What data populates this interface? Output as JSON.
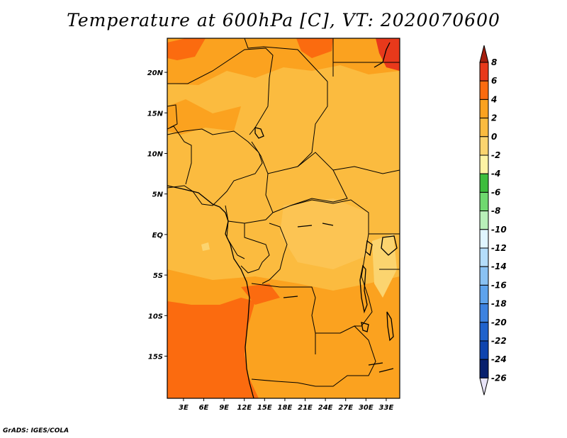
{
  "title": "Temperature at 600hPa [C], VT: 2020070600",
  "credit": "GrADS: IGES/COLA",
  "map": {
    "lat_ticks": [
      {
        "lat": 20,
        "label": "20N"
      },
      {
        "lat": 15,
        "label": "15N"
      },
      {
        "lat": 10,
        "label": "10N"
      },
      {
        "lat": 5,
        "label": "5N"
      },
      {
        "lat": 0,
        "label": "EQ"
      },
      {
        "lat": -5,
        "label": "5S"
      },
      {
        "lat": -10,
        "label": "10S"
      },
      {
        "lat": -15,
        "label": "15S"
      }
    ],
    "lon_ticks": [
      {
        "lon": 3,
        "label": "3E"
      },
      {
        "lon": 6,
        "label": "6E"
      },
      {
        "lon": 9,
        "label": "9E"
      },
      {
        "lon": 12,
        "label": "12E"
      },
      {
        "lon": 15,
        "label": "15E"
      },
      {
        "lon": 18,
        "label": "18E"
      },
      {
        "lon": 21,
        "label": "21E"
      },
      {
        "lon": 24,
        "label": "24E"
      },
      {
        "lon": 27,
        "label": "27E"
      },
      {
        "lon": 30,
        "label": "30E"
      },
      {
        "lon": 33,
        "label": "33E"
      }
    ],
    "dominant_field": "temperature 0 to 4 C over most of the domain, 4 to 6 C in the south-west and along the Angola coast, 6 to 8 C at the north-east corner"
  },
  "colorbar": {
    "levels": [
      {
        "value": "8",
        "color": "#a51e0e"
      },
      {
        "value": "6",
        "color": "#e8391b"
      },
      {
        "value": "4",
        "color": "#fb6b0f"
      },
      {
        "value": "2",
        "color": "#fba21f"
      },
      {
        "value": "0",
        "color": "#fbbb3f"
      },
      {
        "value": "-2",
        "color": "#fbd46f"
      },
      {
        "value": "-4",
        "color": "#fdf3a4"
      },
      {
        "value": "-6",
        "color": "#3dbd3d"
      },
      {
        "value": "-8",
        "color": "#6fd96f"
      },
      {
        "value": "-10",
        "color": "#b9f0b9"
      },
      {
        "value": "-12",
        "color": "#e0f5ff"
      },
      {
        "value": "-14",
        "color": "#b4ddfa"
      },
      {
        "value": "-16",
        "color": "#8ac2f3"
      },
      {
        "value": "-18",
        "color": "#5ea3ec"
      },
      {
        "value": "-20",
        "color": "#3c82e0"
      },
      {
        "value": "-22",
        "color": "#1f62cc"
      },
      {
        "value": "-24",
        "color": "#0f44ae"
      },
      {
        "value": "-26",
        "color": "#08206e"
      }
    ],
    "over_color": "#a51e0e",
    "under_color": "#e8e4f8"
  }
}
